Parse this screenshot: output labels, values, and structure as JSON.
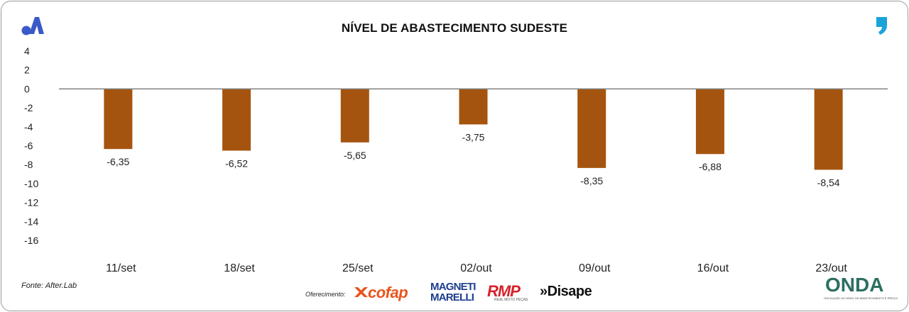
{
  "chart_data": {
    "type": "bar",
    "title": "NÍVEL DE ABASTECIMENTO SUDESTE",
    "categories": [
      "11/set",
      "18/set",
      "25/set",
      "02/out",
      "09/out",
      "16/out",
      "23/out"
    ],
    "values": [
      -6.35,
      -6.52,
      -5.65,
      -3.75,
      -8.35,
      -6.88,
      -8.54
    ],
    "value_labels": [
      "-6,35",
      "-6,52",
      "-5,65",
      "-3,75",
      "-8,35",
      "-6,88",
      "-8,54"
    ],
    "ylim": [
      -16,
      4
    ],
    "yticks": [
      4,
      2,
      0,
      -2,
      -4,
      -6,
      -8,
      -10,
      -12,
      -14,
      -16
    ],
    "ytick_labels": [
      "4",
      "2",
      "0",
      "-2",
      "-4",
      "-6",
      "-8",
      "-10",
      "-12",
      "-14",
      "-16"
    ],
    "bar_color": "#a5540f",
    "zero_line_color": "#7f7f7f",
    "grid": false,
    "legend": "none"
  },
  "footer": {
    "source": "Fonte: After.Lab",
    "sponsor_label": "Oferecimento:",
    "sponsors": {
      "cofap": "cofap",
      "magneti_marelli_line1": "MAGNETI",
      "magneti_marelli_line2": "MARELLI",
      "rmp": "RMP",
      "rmp_sub": "REAL MOTO PEÇAS",
      "disape": "»Disape"
    },
    "brand": "ONDA",
    "brand_sub": "OSCILAÇÃO DO NÍVEL DE ABASTECIMENTO E PREÇO"
  },
  "logos": {
    "top_left": "after-lab-a-logo",
    "top_right": "quote-comma-logo",
    "top_left_color": "#3a5bc7",
    "top_right_color": "#1aa3d9"
  }
}
